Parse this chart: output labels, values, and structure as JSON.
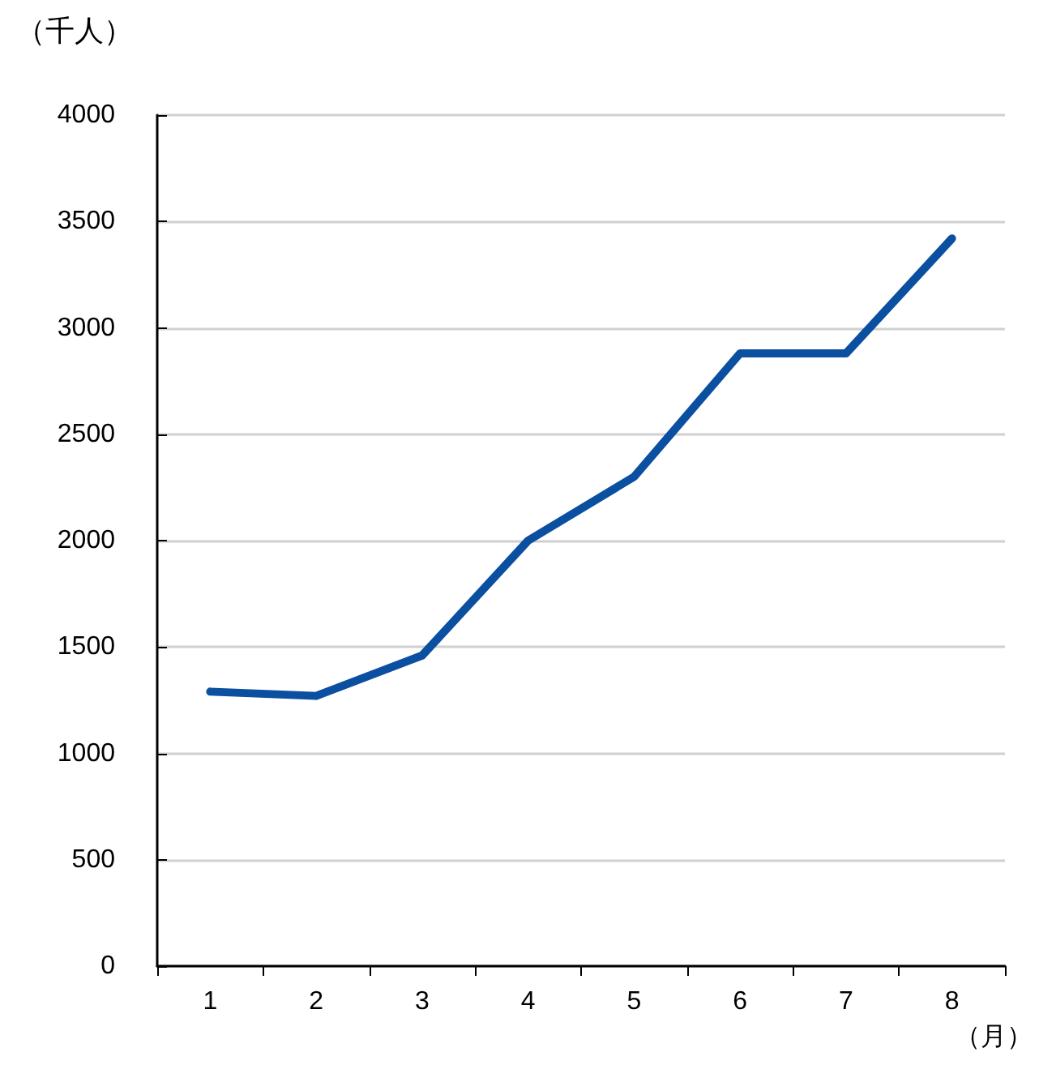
{
  "chart_data": {
    "type": "line",
    "ylabel": "（千人）",
    "xlabel": "（月）",
    "categories": [
      "1",
      "2",
      "3",
      "4",
      "5",
      "6",
      "7",
      "8"
    ],
    "series": [
      {
        "color": "#0b4fa0",
        "values": [
          1290,
          1270,
          1460,
          2000,
          2300,
          2880,
          2880,
          3420
        ]
      }
    ],
    "ylim": [
      0,
      4000
    ],
    "yticks": [
      0,
      500,
      1000,
      1500,
      2000,
      2500,
      3000,
      3500,
      4000
    ],
    "grid": "y",
    "marker": "none",
    "line_style": "solid"
  }
}
